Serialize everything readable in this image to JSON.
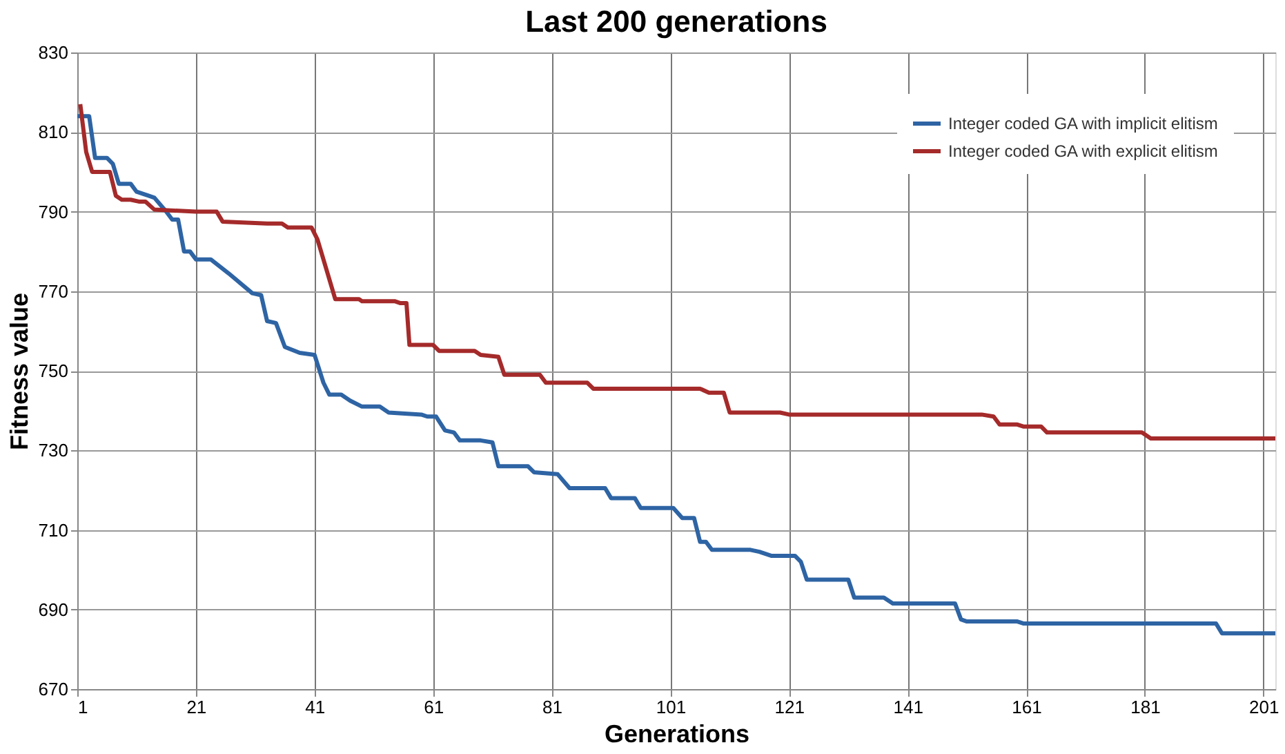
{
  "chart_data": {
    "type": "line",
    "title": "Last 200 generations",
    "xlabel": "Generations",
    "ylabel": "Fitness value",
    "xlim": [
      1,
      203
    ],
    "xticks": [
      1,
      21,
      41,
      61,
      81,
      101,
      121,
      141,
      161,
      181,
      201
    ],
    "ylim": [
      670,
      830
    ],
    "yticks": [
      670,
      690,
      710,
      730,
      750,
      770,
      790,
      810,
      830
    ],
    "grid": true,
    "legend": "top right",
    "marker": "none",
    "line_style": "solid",
    "series": [
      {
        "name": "Integer coded GA with implicit elitism",
        "color": "#2e64a4",
        "x": [
          1,
          3,
          4,
          6,
          7,
          8,
          10,
          11,
          13,
          14,
          16,
          17,
          18,
          19,
          20,
          21,
          23.5,
          26.5,
          30.5,
          32,
          33,
          34.5,
          36,
          38.5,
          41,
          42.5,
          43.5,
          45.5,
          47,
          49,
          52,
          53.5,
          59,
          60,
          61.5,
          63,
          64.5,
          65.5,
          69,
          71,
          72,
          77,
          78,
          82,
          84,
          90,
          91,
          95,
          96,
          101.5,
          103,
          105,
          106,
          107,
          108,
          114.5,
          116,
          118,
          122,
          123,
          124,
          131,
          132,
          137,
          138.5,
          149,
          150,
          151,
          159.5,
          160.5,
          193,
          194,
          203
        ],
        "values": [
          814,
          814,
          803.5,
          803.5,
          802,
          797,
          797,
          795,
          794,
          793.5,
          790,
          788,
          788,
          780,
          780,
          778,
          778,
          774.5,
          769.5,
          769,
          762.5,
          762,
          756,
          754.5,
          754,
          747,
          744,
          744,
          742.5,
          741,
          741,
          739.5,
          739,
          738.5,
          738.5,
          735,
          734.5,
          732.5,
          732.5,
          732,
          726,
          726,
          724.5,
          724,
          720.5,
          720.5,
          718,
          718,
          715.5,
          715.5,
          713,
          713,
          707,
          707,
          705,
          705,
          704.5,
          703.5,
          703.5,
          702,
          697.5,
          697.5,
          693,
          693,
          691.5,
          691.5,
          687.5,
          687,
          687,
          686.5,
          686.5,
          684,
          684
        ]
      },
      {
        "name": "Integer coded GA with explicit elitism",
        "color": "#a52a2a",
        "x": [
          1.5,
          2.5,
          3.5,
          6.5,
          7.5,
          8.5,
          10,
          11.5,
          12.5,
          14,
          21,
          24.5,
          25.5,
          33,
          35.5,
          36.5,
          40.5,
          41.5,
          44.5,
          48.5,
          49,
          54.5,
          55.5,
          56.5,
          57,
          61,
          62,
          68,
          69,
          72,
          73,
          79,
          80,
          87,
          88,
          106,
          107.5,
          110,
          111,
          119.5,
          121,
          153.5,
          155.5,
          156.5,
          159.5,
          160.5,
          163.5,
          164.5,
          180.5,
          182,
          203
        ],
        "values": [
          817,
          805,
          800,
          800,
          794,
          793,
          793,
          792.5,
          792.5,
          790.5,
          790,
          790,
          787.5,
          787,
          787,
          786,
          786,
          783,
          768,
          768,
          767.5,
          767.5,
          767,
          767,
          756.5,
          756.5,
          755,
          755,
          754,
          753.5,
          749,
          749,
          747,
          747,
          745.5,
          745.5,
          744.5,
          744.5,
          739.5,
          739.5,
          739,
          739,
          738.5,
          736.5,
          736.5,
          736,
          736,
          734.5,
          734.5,
          733,
          733
        ]
      }
    ]
  }
}
